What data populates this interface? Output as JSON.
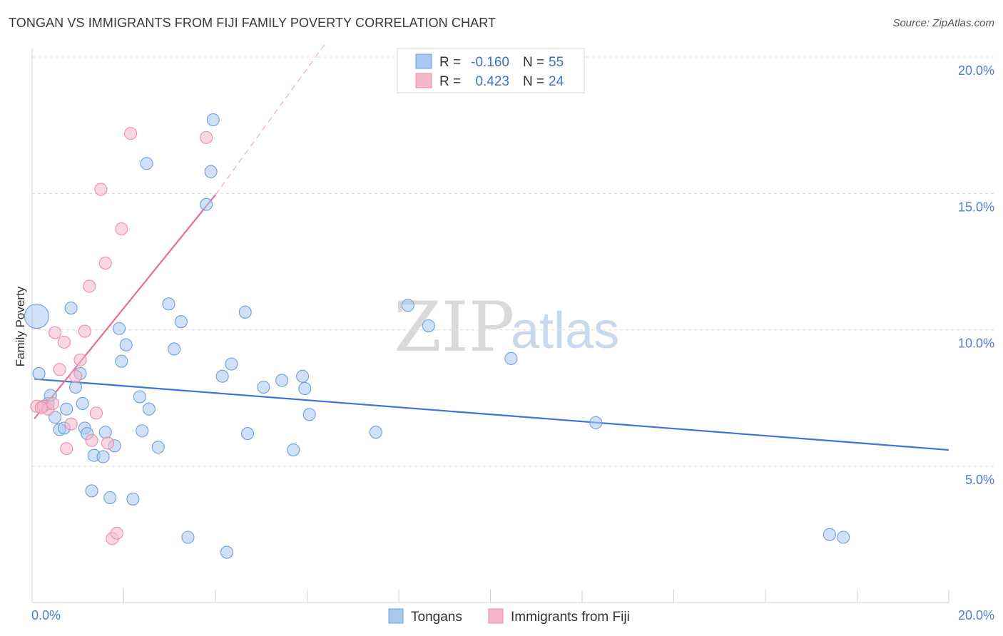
{
  "header": {
    "title": "TONGAN VS IMMIGRANTS FROM FIJI FAMILY POVERTY CORRELATION CHART",
    "source": "Source: ZipAtlas.com"
  },
  "watermark": {
    "zip": "ZIP",
    "atlas": "atlas"
  },
  "legend": {
    "rows": [
      {
        "r_label": "R =",
        "r_value": "-0.160",
        "n_label": "N =",
        "n_value": "55",
        "color": "#a9c8f0"
      },
      {
        "r_label": "R =",
        "r_value": "0.423",
        "n_label": "N =",
        "n_value": "24",
        "color": "#f5b8cb"
      }
    ]
  },
  "chart_data": {
    "type": "scatter",
    "title": "TONGAN VS IMMIGRANTS FROM FIJI FAMILY POVERTY CORRELATION CHART",
    "xlabel": "",
    "ylabel": "Family Poverty",
    "xlim": [
      0,
      20
    ],
    "ylim": [
      0,
      20.5
    ],
    "x_tick_labels": [
      "0.0%",
      "20.0%"
    ],
    "y_ticks": [
      5,
      10,
      15,
      20
    ],
    "y_tick_labels": [
      "5.0%",
      "10.0%",
      "15.0%",
      "20.0%"
    ],
    "grid": true,
    "legend_position": "bottom",
    "series": [
      {
        "name": "Tongans",
        "color": "#6b9fe0",
        "fill": "#a9c8f0",
        "trend": {
          "x": [
            0.05,
            20.0
          ],
          "y": [
            8.2,
            5.6
          ]
        },
        "points": [
          {
            "x": 0.15,
            "y": 8.4
          },
          {
            "x": 0.25,
            "y": 7.2
          },
          {
            "x": 0.35,
            "y": 7.3
          },
          {
            "x": 0.4,
            "y": 7.6
          },
          {
            "x": 0.5,
            "y": 6.8
          },
          {
            "x": 0.6,
            "y": 6.35
          },
          {
            "x": 0.7,
            "y": 6.4
          },
          {
            "x": 0.75,
            "y": 7.1
          },
          {
            "x": 0.85,
            "y": 10.8
          },
          {
            "x": 0.95,
            "y": 7.9
          },
          {
            "x": 1.05,
            "y": 8.4
          },
          {
            "x": 1.1,
            "y": 7.3
          },
          {
            "x": 1.15,
            "y": 6.4
          },
          {
            "x": 1.2,
            "y": 6.2
          },
          {
            "x": 1.3,
            "y": 4.1
          },
          {
            "x": 1.35,
            "y": 5.4
          },
          {
            "x": 1.55,
            "y": 5.35
          },
          {
            "x": 1.6,
            "y": 6.25
          },
          {
            "x": 1.7,
            "y": 3.85
          },
          {
            "x": 1.8,
            "y": 5.75
          },
          {
            "x": 1.9,
            "y": 10.05
          },
          {
            "x": 1.95,
            "y": 8.85
          },
          {
            "x": 2.05,
            "y": 9.45
          },
          {
            "x": 2.2,
            "y": 3.8
          },
          {
            "x": 2.35,
            "y": 7.55
          },
          {
            "x": 2.4,
            "y": 6.3
          },
          {
            "x": 2.5,
            "y": 16.1
          },
          {
            "x": 2.55,
            "y": 7.1
          },
          {
            "x": 2.75,
            "y": 5.7
          },
          {
            "x": 2.98,
            "y": 10.95
          },
          {
            "x": 3.1,
            "y": 9.3
          },
          {
            "x": 3.25,
            "y": 10.3
          },
          {
            "x": 3.4,
            "y": 2.4
          },
          {
            "x": 3.8,
            "y": 14.6
          },
          {
            "x": 3.9,
            "y": 15.8
          },
          {
            "x": 3.95,
            "y": 17.7
          },
          {
            "x": 4.15,
            "y": 8.3
          },
          {
            "x": 4.25,
            "y": 1.85
          },
          {
            "x": 4.35,
            "y": 8.75
          },
          {
            "x": 4.65,
            "y": 10.65
          },
          {
            "x": 4.7,
            "y": 6.2
          },
          {
            "x": 5.05,
            "y": 7.9
          },
          {
            "x": 5.45,
            "y": 8.15
          },
          {
            "x": 5.7,
            "y": 5.6
          },
          {
            "x": 5.9,
            "y": 8.3
          },
          {
            "x": 5.95,
            "y": 7.85
          },
          {
            "x": 6.05,
            "y": 6.9
          },
          {
            "x": 7.5,
            "y": 6.25
          },
          {
            "x": 8.2,
            "y": 10.9
          },
          {
            "x": 8.65,
            "y": 10.15
          },
          {
            "x": 10.45,
            "y": 8.95
          },
          {
            "x": 12.3,
            "y": 6.6
          },
          {
            "x": 17.4,
            "y": 2.5
          },
          {
            "x": 17.7,
            "y": 2.4
          },
          {
            "x": 0.1,
            "y": 10.5,
            "size": "large"
          }
        ]
      },
      {
        "name": "Immigrants from Fiji",
        "color": "#f08aa8",
        "fill": "#f5b8cb",
        "trend": {
          "x": [
            0.05,
            4.0
          ],
          "y": [
            6.75,
            14.95
          ]
        },
        "trend_extension": {
          "x": [
            4.0,
            6.4
          ],
          "y": [
            14.95,
            20.5
          ]
        },
        "points": [
          {
            "x": 0.1,
            "y": 7.2
          },
          {
            "x": 0.25,
            "y": 7.2
          },
          {
            "x": 0.35,
            "y": 7.1
          },
          {
            "x": 0.45,
            "y": 7.3
          },
          {
            "x": 0.5,
            "y": 9.9
          },
          {
            "x": 0.6,
            "y": 8.55
          },
          {
            "x": 0.7,
            "y": 9.55
          },
          {
            "x": 0.75,
            "y": 5.65
          },
          {
            "x": 0.85,
            "y": 6.55
          },
          {
            "x": 0.95,
            "y": 8.3
          },
          {
            "x": 1.05,
            "y": 8.9
          },
          {
            "x": 1.15,
            "y": 9.95
          },
          {
            "x": 1.25,
            "y": 11.6
          },
          {
            "x": 1.3,
            "y": 5.95
          },
          {
            "x": 1.4,
            "y": 6.95
          },
          {
            "x": 1.5,
            "y": 15.15
          },
          {
            "x": 1.6,
            "y": 12.45
          },
          {
            "x": 1.65,
            "y": 5.85
          },
          {
            "x": 1.75,
            "y": 2.35
          },
          {
            "x": 1.85,
            "y": 2.55
          },
          {
            "x": 1.95,
            "y": 13.7
          },
          {
            "x": 2.15,
            "y": 17.2
          },
          {
            "x": 3.8,
            "y": 17.05
          },
          {
            "x": 0.2,
            "y": 7.15
          }
        ]
      }
    ]
  }
}
